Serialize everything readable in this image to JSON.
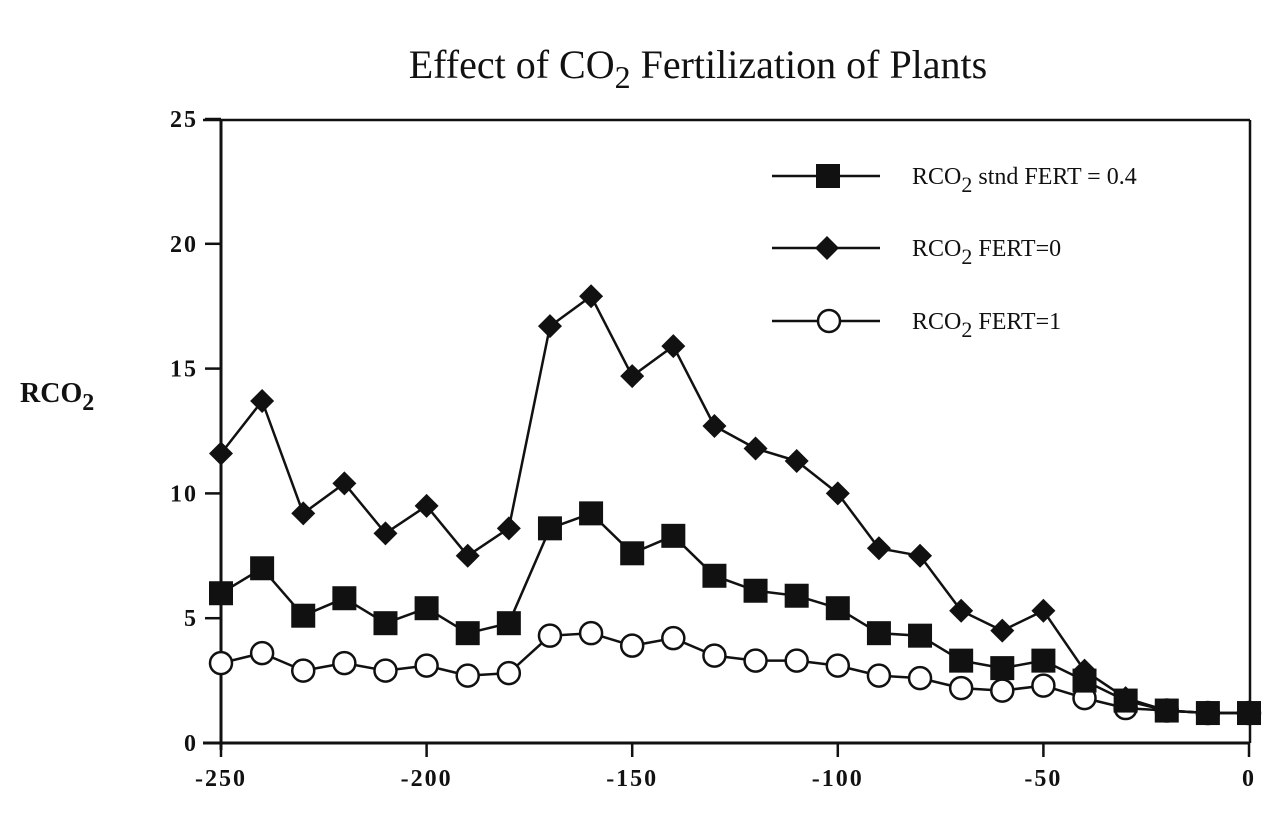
{
  "chart_data": {
    "type": "line",
    "title": "Effect of CO2 Fertilization of Plants",
    "title_parts": {
      "before": "Effect of CO",
      "sub": "2",
      "after": " Fertilization of Plants"
    },
    "xlabel": "",
    "ylabel": "RCO2",
    "ylabel_parts": {
      "base": "RCO",
      "sub": "2"
    },
    "xlim": [
      -250,
      0
    ],
    "ylim": [
      0,
      25
    ],
    "x_ticks": [
      -250,
      -200,
      -150,
      -100,
      -50,
      0
    ],
    "x_tick_labels": [
      "-250",
      "-200",
      "-150",
      "-100",
      "-50",
      "0"
    ],
    "y_ticks": [
      0,
      5,
      10,
      15,
      20,
      25
    ],
    "y_tick_labels": [
      "0",
      "5",
      "10",
      "15",
      "20",
      "25"
    ],
    "grid": false,
    "legend_position": "top-right",
    "x": [
      -250,
      -240,
      -230,
      -220,
      -210,
      -200,
      -190,
      -180,
      -170,
      -160,
      -150,
      -140,
      -130,
      -120,
      -110,
      -100,
      -90,
      -80,
      -70,
      -60,
      -50,
      -40,
      -30,
      -20,
      -10,
      0
    ],
    "series": [
      {
        "name": "RCO2 stnd FERT = 0.4",
        "legend_parts": {
          "base": "RCO",
          "sub": "2",
          "rest": " stnd FERT = 0.4"
        },
        "marker": "square-filled",
        "values": [
          6.0,
          7.0,
          5.1,
          5.8,
          4.8,
          5.4,
          4.4,
          4.8,
          8.6,
          9.2,
          7.6,
          8.3,
          6.7,
          6.1,
          5.9,
          5.4,
          4.4,
          4.3,
          3.3,
          3.0,
          3.3,
          2.5,
          1.7,
          1.3,
          1.2,
          1.2
        ]
      },
      {
        "name": "RCO2 FERT=0",
        "legend_parts": {
          "base": "RCO",
          "sub": "2",
          "rest": " FERT=0"
        },
        "marker": "diamond-filled",
        "values": [
          11.6,
          13.7,
          9.2,
          10.4,
          8.4,
          9.5,
          7.5,
          8.6,
          16.7,
          17.9,
          14.7,
          15.9,
          12.7,
          11.8,
          11.3,
          10.0,
          7.8,
          7.5,
          5.3,
          4.5,
          5.3,
          2.9,
          1.8,
          1.3,
          1.2,
          1.2
        ]
      },
      {
        "name": "RCO2 FERT=1",
        "legend_parts": {
          "base": "RCO",
          "sub": "2",
          "rest": " FERT=1"
        },
        "marker": "circle-open",
        "values": [
          3.2,
          3.6,
          2.9,
          3.2,
          2.9,
          3.1,
          2.7,
          2.8,
          4.3,
          4.4,
          3.9,
          4.2,
          3.5,
          3.3,
          3.3,
          3.1,
          2.7,
          2.6,
          2.2,
          2.1,
          2.3,
          1.8,
          1.4,
          1.3,
          1.2,
          1.2
        ]
      }
    ],
    "colors": {
      "ink": "#111111",
      "background": "#ffffff",
      "open_marker_fill": "#ffffff"
    }
  }
}
